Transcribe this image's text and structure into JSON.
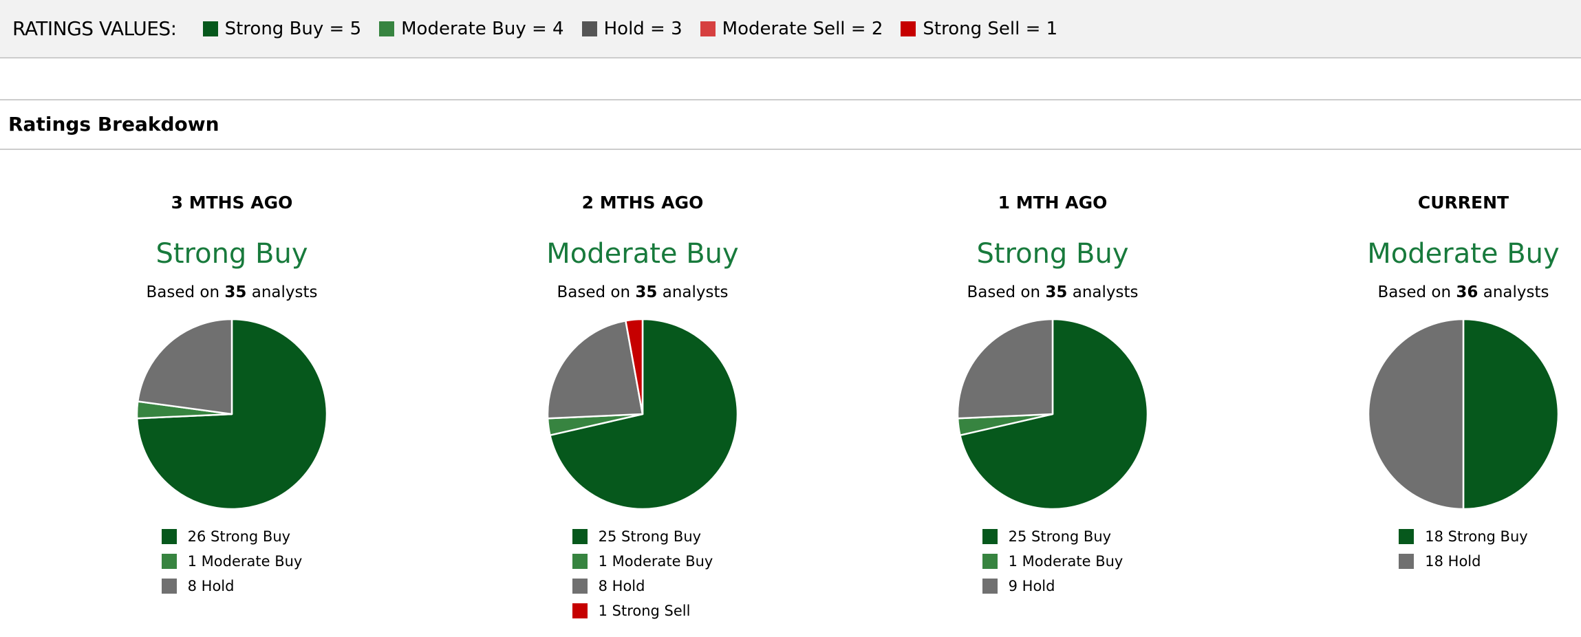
{
  "header": {
    "label": "RATINGS VALUES:",
    "keys": [
      {
        "label": "Strong Buy = 5",
        "color": "#06581c"
      },
      {
        "label": "Moderate Buy = 4",
        "color": "#378440"
      },
      {
        "label": "Hold = 3",
        "color": "#555555"
      },
      {
        "label": "Moderate Sell = 2",
        "color": "#d64040"
      },
      {
        "label": "Strong Sell = 1",
        "color": "#c60000"
      }
    ]
  },
  "section_title": "Ratings Breakdown",
  "chart_data": [
    {
      "type": "pie",
      "title": "3 MTHS AGO",
      "rating": "Strong Buy",
      "based_prefix": "Based on ",
      "analysts": "35",
      "based_suffix": " analysts",
      "slices": [
        {
          "label": "Strong Buy",
          "value": 26,
          "text": "26 Strong Buy",
          "color": "#06581c"
        },
        {
          "label": "Moderate Buy",
          "value": 1,
          "text": "1 Moderate Buy",
          "color": "#378440"
        },
        {
          "label": "Hold",
          "value": 8,
          "text": "8 Hold",
          "color": "#707070"
        }
      ]
    },
    {
      "type": "pie",
      "title": "2 MTHS AGO",
      "rating": "Moderate Buy",
      "based_prefix": "Based on ",
      "analysts": "35",
      "based_suffix": " analysts",
      "slices": [
        {
          "label": "Strong Buy",
          "value": 25,
          "text": "25 Strong Buy",
          "color": "#06581c"
        },
        {
          "label": "Moderate Buy",
          "value": 1,
          "text": "1 Moderate Buy",
          "color": "#378440"
        },
        {
          "label": "Hold",
          "value": 8,
          "text": "8 Hold",
          "color": "#707070"
        },
        {
          "label": "Strong Sell",
          "value": 1,
          "text": "1 Strong Sell",
          "color": "#c60000"
        }
      ]
    },
    {
      "type": "pie",
      "title": "1 MTH AGO",
      "rating": "Strong Buy",
      "based_prefix": "Based on ",
      "analysts": "35",
      "based_suffix": " analysts",
      "slices": [
        {
          "label": "Strong Buy",
          "value": 25,
          "text": "25 Strong Buy",
          "color": "#06581c"
        },
        {
          "label": "Moderate Buy",
          "value": 1,
          "text": "1 Moderate Buy",
          "color": "#378440"
        },
        {
          "label": "Hold",
          "value": 9,
          "text": "9 Hold",
          "color": "#707070"
        }
      ]
    },
    {
      "type": "pie",
      "title": "CURRENT",
      "rating": "Moderate Buy",
      "based_prefix": "Based on ",
      "analysts": "36",
      "based_suffix": " analysts",
      "slices": [
        {
          "label": "Strong Buy",
          "value": 18,
          "text": "18 Strong Buy",
          "color": "#06581c"
        },
        {
          "label": "Hold",
          "value": 18,
          "text": "18 Hold",
          "color": "#707070"
        }
      ]
    }
  ]
}
